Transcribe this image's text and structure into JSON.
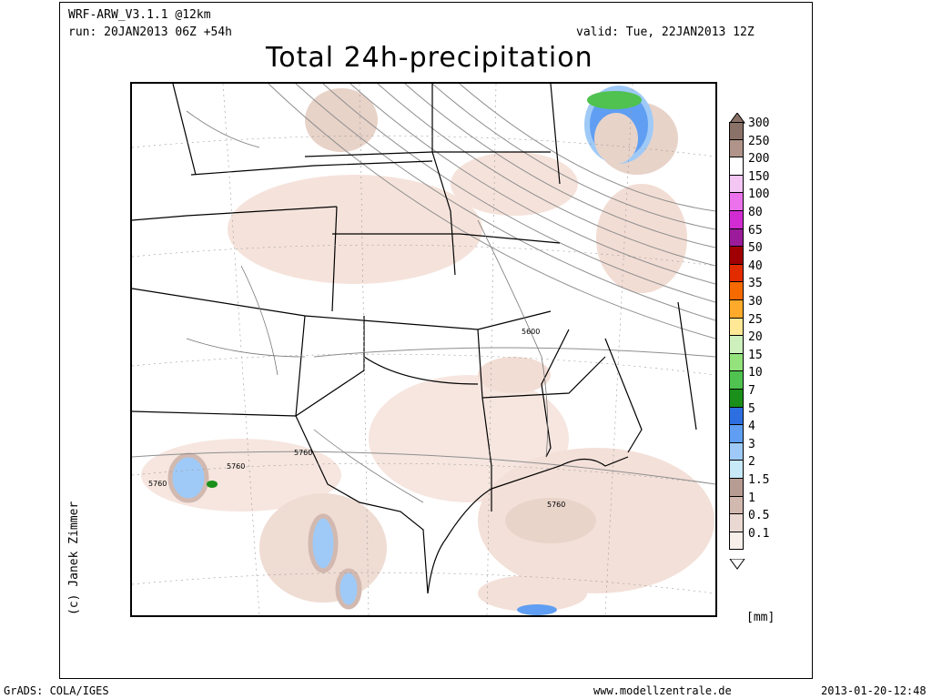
{
  "header": {
    "model": "WRF-ARW_V3.1.1 @12km",
    "run": "run: 20JAN2013 06Z +54h",
    "valid": "valid: Tue, 22JAN2013 12Z",
    "title": "Total 24h-precipitation"
  },
  "credit": "(c) Janek Zimmer",
  "legend": {
    "unit": "[mm]",
    "entries": [
      {
        "label": "300",
        "color": "#8b7268"
      },
      {
        "label": "250",
        "color": "#b0948a"
      },
      {
        "label": "200",
        "color": "#ffffff"
      },
      {
        "label": "150",
        "color": "#f4c6f4"
      },
      {
        "label": "100",
        "color": "#ec72ec"
      },
      {
        "label": "80",
        "color": "#d12cd1"
      },
      {
        "label": "65",
        "color": "#9b1b9b"
      },
      {
        "label": "50",
        "color": "#a10000"
      },
      {
        "label": "40",
        "color": "#e32b00"
      },
      {
        "label": "35",
        "color": "#f76a00"
      },
      {
        "label": "30",
        "color": "#ffaa2a"
      },
      {
        "label": "25",
        "color": "#ffe896"
      },
      {
        "label": "20",
        "color": "#cdf0bd"
      },
      {
        "label": "15",
        "color": "#93e27c"
      },
      {
        "label": "10",
        "color": "#4fc24f"
      },
      {
        "label": "7",
        "color": "#1a901a"
      },
      {
        "label": "5",
        "color": "#2d6fe0"
      },
      {
        "label": "4",
        "color": "#5f9ef2"
      },
      {
        "label": "3",
        "color": "#9fcaf7"
      },
      {
        "label": "2",
        "color": "#c8e9f8"
      },
      {
        "label": "1.5",
        "color": "#b79c93"
      },
      {
        "label": "1",
        "color": "#d2b9b0"
      },
      {
        "label": "0.5",
        "color": "#ead9d2"
      },
      {
        "label": "0.1",
        "color": "#f8efeb"
      }
    ]
  },
  "contour_labels": [
    "5600",
    "5760",
    "5760",
    "5760",
    "5760"
  ],
  "footer": {
    "left": "GrADS: COLA/IGES",
    "center": "www.modellzentrale.de",
    "right": "2013-01-20-12:48"
  }
}
